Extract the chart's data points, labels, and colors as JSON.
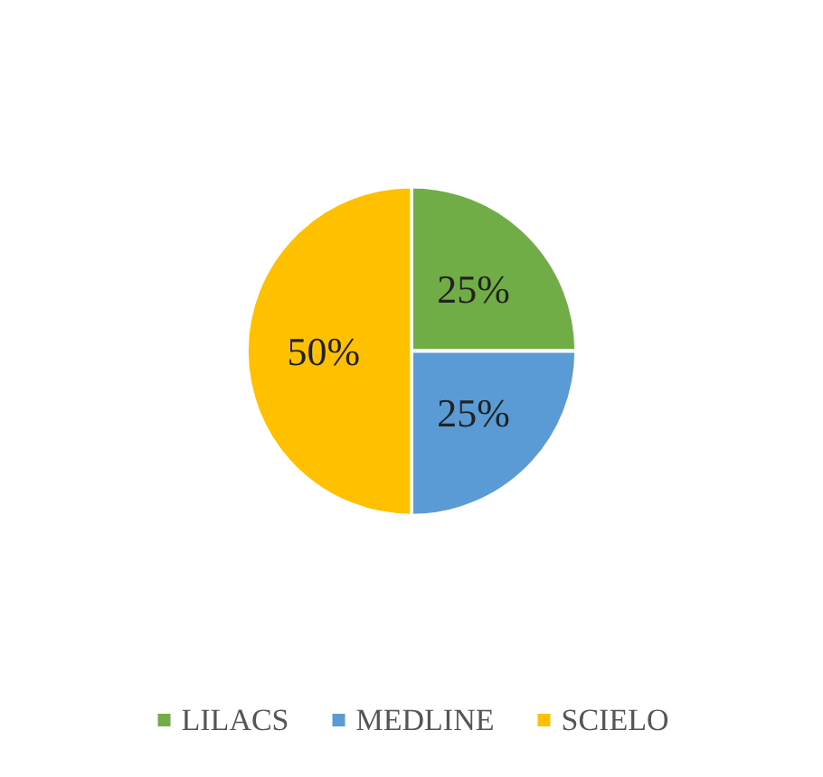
{
  "chart_data": {
    "type": "pie",
    "categories": [
      "LILACS",
      "MEDLINE",
      "SCIELO"
    ],
    "values": [
      25,
      25,
      50
    ],
    "colors": [
      "#70ad47",
      "#5b9bd5",
      "#ffc000"
    ],
    "value_labels": [
      "25%",
      "25%",
      "50%"
    ],
    "legend": "bottom"
  }
}
